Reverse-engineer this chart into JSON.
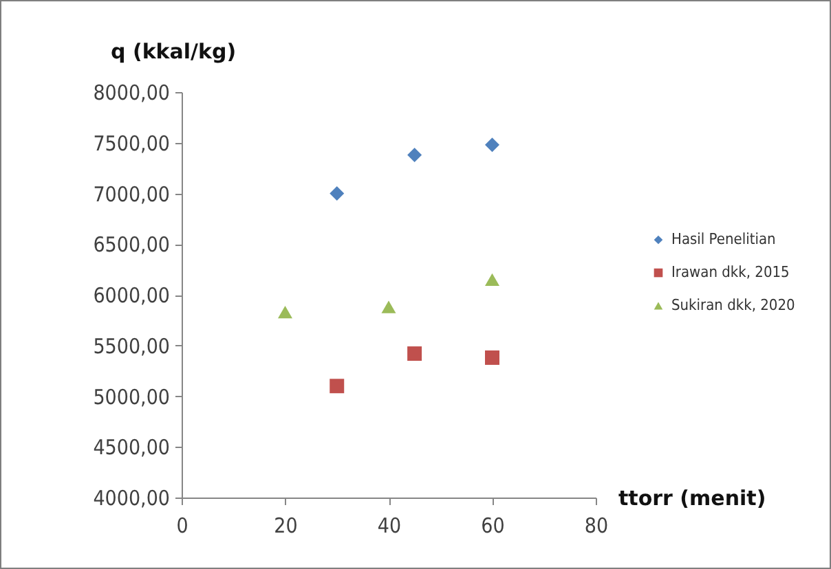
{
  "chart_data": {
    "type": "scatter",
    "xlabel": "ttorr (menit)",
    "ylabel": "q (kkal/kg)",
    "xlim": [
      0,
      80
    ],
    "xticks": [
      0,
      20,
      40,
      60,
      80
    ],
    "ylim": [
      4000,
      8000
    ],
    "yticks": [
      {
        "value": 4000,
        "label": "4000,00"
      },
      {
        "value": 4500,
        "label": "4500,00"
      },
      {
        "value": 5000,
        "label": "5000,00"
      },
      {
        "value": 5500,
        "label": "5500,00"
      },
      {
        "value": 6000,
        "label": "6000,00"
      },
      {
        "value": 6500,
        "label": "6500,00"
      },
      {
        "value": 7000,
        "label": "7000,00"
      },
      {
        "value": 7500,
        "label": "7500,00"
      },
      {
        "value": 8000,
        "label": "8000,00"
      }
    ],
    "legend": "right",
    "grid": false,
    "series": [
      {
        "name": "Hasil Penelitian",
        "color": "#4f81bd",
        "marker": "diamond",
        "x": [
          30,
          45,
          60
        ],
        "values": [
          7000,
          7380,
          7480
        ]
      },
      {
        "name": "Irawan dkk, 2015",
        "color": "#c0504d",
        "marker": "square",
        "x": [
          30,
          45,
          60
        ],
        "values": [
          5100,
          5420,
          5380
        ]
      },
      {
        "name": "Sukiran dkk, 2020",
        "color": "#9bbb59",
        "marker": "triangle",
        "x": [
          20,
          40,
          60
        ],
        "values": [
          5830,
          5880,
          6150
        ]
      }
    ]
  }
}
